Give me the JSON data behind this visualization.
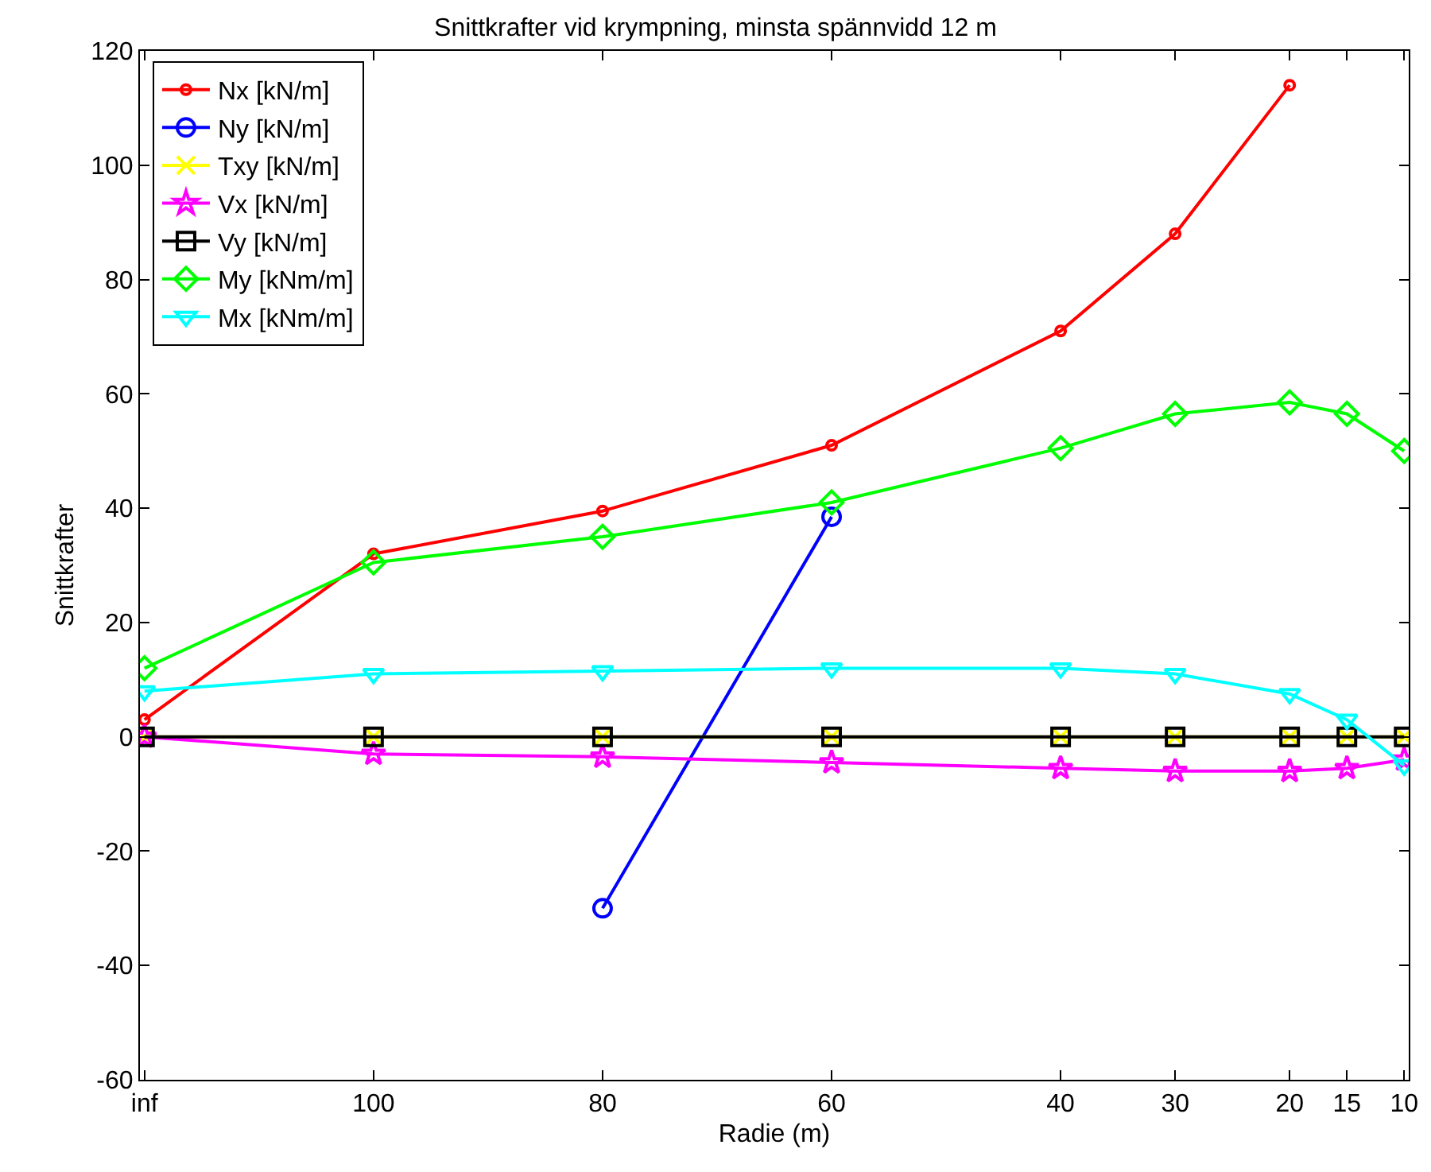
{
  "chart_data": {
    "type": "line",
    "title": "Snittkrafter vid krympning, minsta spännvidd 12 m",
    "xlabel": "Radie (m)",
    "ylabel": "Snittkrafter",
    "categories": [
      "inf",
      null,
      null,
      null,
      "100",
      null,
      null,
      null,
      "80",
      null,
      null,
      null,
      "60",
      null,
      null,
      null,
      "40",
      null,
      "30",
      null,
      "20",
      "15",
      "10"
    ],
    "ylim": [
      -60,
      120
    ],
    "yticks": [
      -60,
      -40,
      -20,
      0,
      20,
      40,
      60,
      80,
      100,
      120
    ],
    "grid": false,
    "legend": "top left",
    "series": [
      {
        "name": "Nx [kN/m]",
        "color": "#ff0000",
        "marker": "circle",
        "values": [
          3,
          null,
          null,
          null,
          32,
          null,
          null,
          null,
          39.5,
          null,
          null,
          null,
          51,
          null,
          null,
          null,
          71,
          null,
          88,
          null,
          114,
          null,
          null
        ]
      },
      {
        "name": "Ny [kN/m]",
        "color": "#0000ff",
        "marker": "circle",
        "values": [
          null,
          null,
          null,
          null,
          null,
          null,
          null,
          null,
          -30,
          null,
          null,
          null,
          38.5,
          null,
          null,
          null,
          null,
          null,
          null,
          null,
          null,
          null,
          null
        ]
      },
      {
        "name": "Txy [kN/m]",
        "color": "#ffff00",
        "marker": "cross",
        "values": [
          0,
          null,
          null,
          null,
          0,
          null,
          null,
          null,
          0,
          null,
          null,
          null,
          0,
          null,
          null,
          null,
          0,
          null,
          0,
          null,
          0,
          0,
          0
        ]
      },
      {
        "name": "Vx [kN/m]",
        "color": "#ff00ff",
        "marker": "star",
        "values": [
          0,
          null,
          null,
          null,
          -3,
          null,
          null,
          null,
          -3.5,
          null,
          null,
          null,
          -4.5,
          null,
          null,
          null,
          -5.5,
          null,
          -6,
          null,
          -6,
          -5.5,
          -4
        ]
      },
      {
        "name": "Vy [kN/m]",
        "color": "#000000",
        "marker": "square",
        "values": [
          0,
          null,
          null,
          null,
          0,
          null,
          null,
          null,
          0,
          null,
          null,
          null,
          0,
          null,
          null,
          null,
          0,
          null,
          0,
          null,
          0,
          0,
          0
        ]
      },
      {
        "name": "My [kNm/m]",
        "color": "#00ff00",
        "marker": "diamond",
        "values": [
          12,
          null,
          null,
          null,
          30.5,
          null,
          null,
          null,
          35,
          null,
          null,
          null,
          41,
          null,
          null,
          null,
          50.5,
          null,
          56.5,
          null,
          58.5,
          56.5,
          50
        ]
      },
      {
        "name": "Mx [kNm/m]",
        "color": "#00ffff",
        "marker": "triangle",
        "values": [
          8,
          null,
          null,
          null,
          11,
          null,
          null,
          null,
          11.5,
          null,
          null,
          null,
          12,
          null,
          null,
          null,
          12,
          null,
          11,
          null,
          7.5,
          3,
          -5
        ]
      }
    ]
  }
}
